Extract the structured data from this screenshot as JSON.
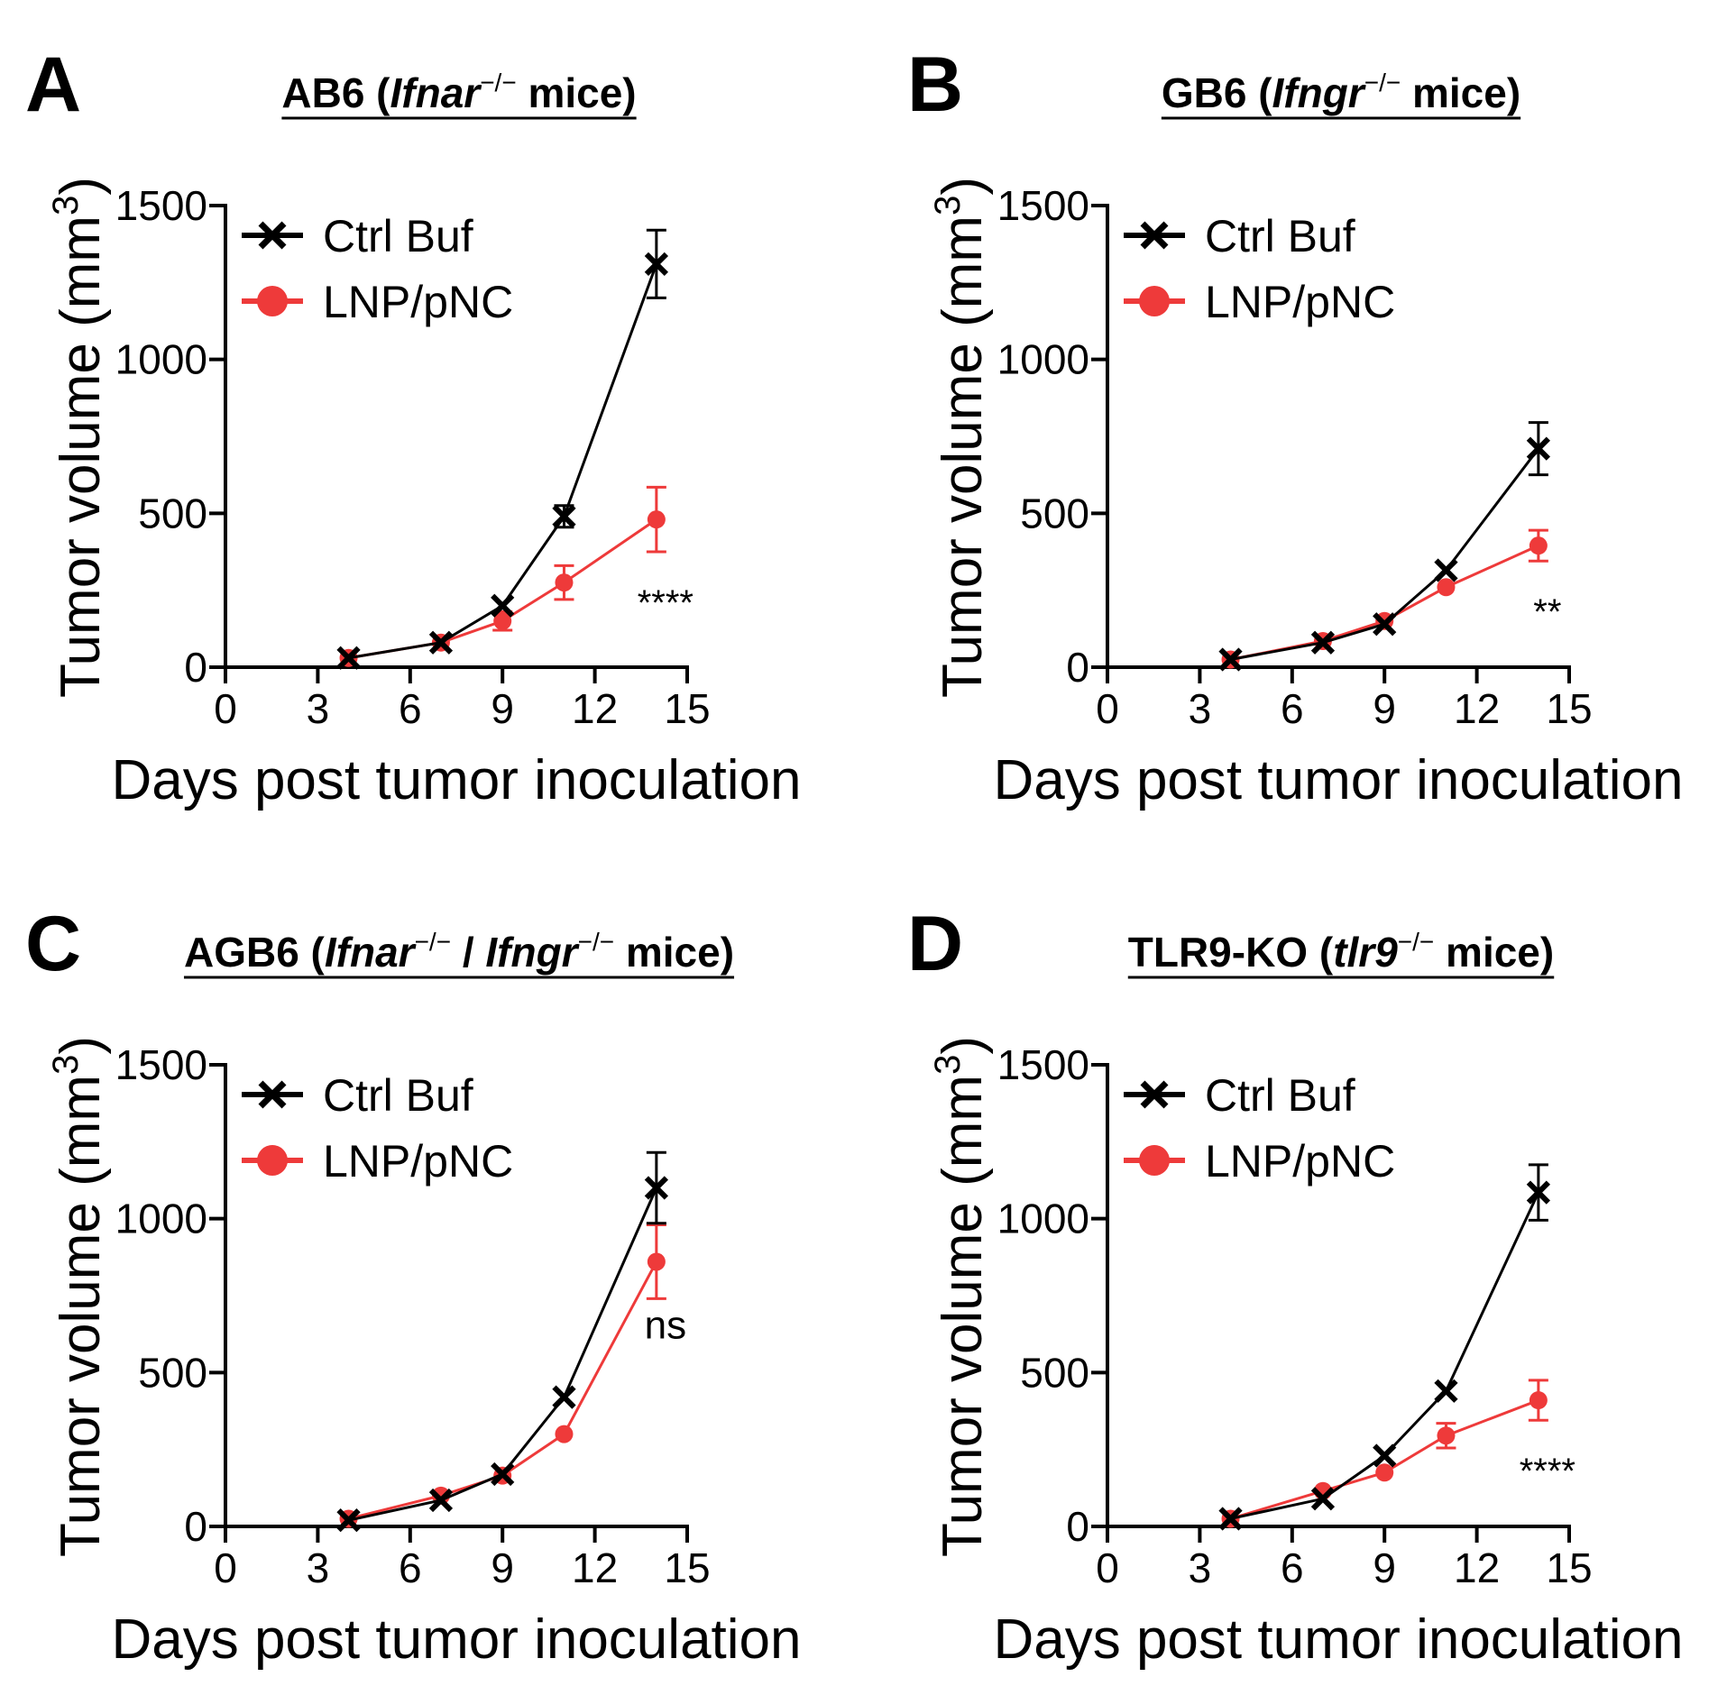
{
  "colors": {
    "ctrl": "#000000",
    "lnp": "#ee3a3a"
  },
  "legend": {
    "ctrl_label": "Ctrl Buf",
    "lnp_label": "LNP/pNC"
  },
  "axes": {
    "xlabel": "Days post tumor inoculation",
    "ylabel_main": "Tumor volume (mm",
    "ylabel_sup": "3",
    "ylabel_close": ")",
    "xticks": [
      "0",
      "3",
      "6",
      "9",
      "12",
      "15"
    ],
    "yticks": [
      "0",
      "500",
      "1000",
      "1500"
    ]
  },
  "chart_data": [
    {
      "type": "line",
      "panel": "A",
      "title": "AB6 (Ifnar⁻/⁻ mice)",
      "title_parts": {
        "strain": "AB6 (",
        "gene1": "Ifnar",
        "sup1": "−/−",
        "mid": "",
        "gene2": "",
        "sup2": "",
        "tail": " mice)"
      },
      "xlabel": "Days post tumor inoculation",
      "ylabel": "Tumor volume (mm3)",
      "xlim": [
        0,
        15
      ],
      "ylim": [
        0,
        1500
      ],
      "x": [
        4,
        7,
        9,
        11,
        14
      ],
      "series": [
        {
          "name": "Ctrl Buf",
          "values": [
            30,
            80,
            200,
            490,
            1310
          ],
          "errors": [
            10,
            15,
            20,
            35,
            110
          ]
        },
        {
          "name": "LNP/pNC",
          "values": [
            30,
            80,
            150,
            275,
            480
          ],
          "errors": [
            10,
            15,
            30,
            55,
            105
          ]
        }
      ],
      "significance": "****"
    },
    {
      "type": "line",
      "panel": "B",
      "title": "GB6 (Ifngr⁻/⁻ mice)",
      "title_parts": {
        "strain": "GB6 (",
        "gene1": "Ifngr",
        "sup1": "−/−",
        "mid": "",
        "gene2": "",
        "sup2": "",
        "tail": " mice)"
      },
      "xlabel": "Days post tumor inoculation",
      "ylabel": "Tumor volume (mm3)",
      "xlim": [
        0,
        15
      ],
      "ylim": [
        0,
        1500
      ],
      "x": [
        4,
        7,
        9,
        11,
        14
      ],
      "series": [
        {
          "name": "Ctrl Buf",
          "values": [
            25,
            80,
            140,
            315,
            710
          ],
          "errors": [
            8,
            12,
            15,
            20,
            85
          ]
        },
        {
          "name": "LNP/pNC",
          "values": [
            25,
            85,
            150,
            260,
            395
          ],
          "errors": [
            8,
            12,
            15,
            20,
            50
          ]
        }
      ],
      "significance": "**"
    },
    {
      "type": "line",
      "panel": "C",
      "title": "AGB6 (Ifnar⁻/⁻ / Ifngr⁻/⁻ mice)",
      "title_parts": {
        "strain": "AGB6 (",
        "gene1": "Ifnar",
        "sup1": "−/−",
        "mid": " / ",
        "gene2": "Ifngr",
        "sup2": "−/−",
        "tail": " mice)"
      },
      "xlabel": "Days post tumor inoculation",
      "ylabel": "Tumor volume (mm3)",
      "xlim": [
        0,
        15
      ],
      "ylim": [
        0,
        1500
      ],
      "x": [
        4,
        7,
        9,
        11,
        14
      ],
      "series": [
        {
          "name": "Ctrl Buf",
          "values": [
            20,
            85,
            170,
            420,
            1100
          ],
          "errors": [
            8,
            12,
            15,
            20,
            115
          ]
        },
        {
          "name": "LNP/pNC",
          "values": [
            25,
            100,
            165,
            300,
            860
          ],
          "errors": [
            8,
            12,
            15,
            20,
            120
          ]
        }
      ],
      "significance": "ns"
    },
    {
      "type": "line",
      "panel": "D",
      "title": "TLR9-KO (tlr9⁻/⁻ mice)",
      "title_parts": {
        "strain": "TLR9-KO (",
        "gene1": "tlr9",
        "sup1": "−/−",
        "mid": "",
        "gene2": "",
        "sup2": "",
        "tail": " mice)"
      },
      "xlabel": "Days post tumor inoculation",
      "ylabel": "Tumor volume (mm3)",
      "xlim": [
        0,
        15
      ],
      "ylim": [
        0,
        1500
      ],
      "x": [
        4,
        7,
        9,
        11,
        14
      ],
      "series": [
        {
          "name": "Ctrl Buf",
          "values": [
            25,
            90,
            230,
            440,
            1085
          ],
          "errors": [
            8,
            12,
            15,
            25,
            90
          ]
        },
        {
          "name": "LNP/pNC",
          "values": [
            25,
            115,
            175,
            295,
            410
          ],
          "errors": [
            8,
            12,
            15,
            40,
            65
          ]
        }
      ],
      "significance": "****"
    }
  ]
}
